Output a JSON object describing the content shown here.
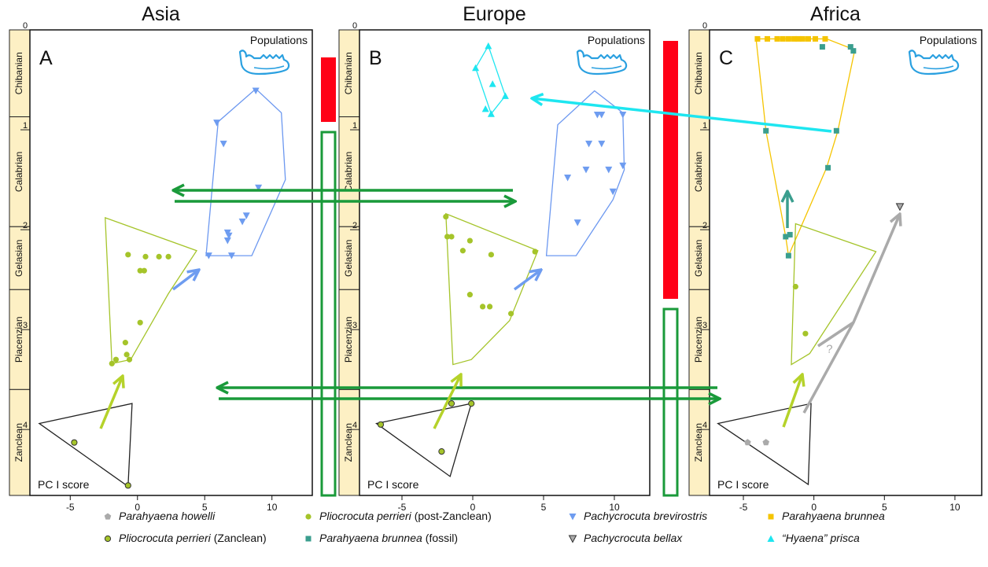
{
  "chart_data": [
    {
      "type": "scatter",
      "title": "Asia",
      "label": "A",
      "populations": "Populations",
      "xlabel": "PC I score",
      "xlim": [
        -8,
        13
      ],
      "xticks": [
        -5,
        0,
        5,
        10
      ],
      "ylim": [
        0,
        4.66
      ],
      "y_reversed": true,
      "yticks": [
        0,
        1,
        2,
        3,
        4
      ],
      "series": [
        {
          "marker": "circle",
          "color": "#a5c42a",
          "x": [
            -0.7,
            0.6,
            1.6,
            2.3,
            0.2,
            0.5,
            0.2,
            -0.9,
            -0.8,
            -0.6,
            -1.6,
            -1.9
          ],
          "y": [
            2.25,
            2.27,
            2.27,
            2.27,
            2.41,
            2.41,
            2.93,
            3.13,
            3.25,
            3.3,
            3.3,
            3.34
          ]
        },
        {
          "marker": "down-triangle",
          "color": "#6e9cf0",
          "x": [
            8.8,
            5.9,
            6.4,
            9.0,
            8.1,
            7.8,
            6.7,
            6.8,
            6.7,
            5.3,
            7.0
          ],
          "y": [
            0.61,
            0.93,
            1.14,
            1.58,
            1.86,
            1.92,
            2.03,
            2.06,
            2.11,
            2.26,
            2.26
          ]
        },
        {
          "marker": "circle-outlined",
          "color": "#a5c42a",
          "x": [
            -4.7,
            -0.7
          ],
          "y": [
            4.13,
            4.56
          ]
        }
      ],
      "hulls": [
        {
          "color": "#a5c42a",
          "x": [
            -2.4,
            4.4,
            2.3,
            -0.5,
            -1.9
          ],
          "y": [
            1.88,
            2.21,
            2.64,
            3.3,
            3.34
          ]
        },
        {
          "color": "#6c98f0",
          "x": [
            8.8,
            10.7,
            11.0,
            8.5,
            5.1,
            6.0
          ],
          "y": [
            0.59,
            0.83,
            1.5,
            2.26,
            2.26,
            0.92
          ]
        },
        {
          "color": "#222222",
          "x": [
            -7.3,
            -0.4,
            -0.7
          ],
          "y": [
            3.94,
            3.74,
            4.57
          ]
        }
      ]
    },
    {
      "type": "scatter",
      "title": "Europe",
      "label": "B",
      "populations": "Populations",
      "xlabel": "PC I score",
      "xlim": [
        -8,
        12.5
      ],
      "xticks": [
        -5,
        0,
        5,
        10
      ],
      "ylim": [
        0,
        4.66
      ],
      "y_reversed": true,
      "yticks": [
        0,
        1,
        2,
        3,
        4
      ],
      "series": [
        {
          "marker": "up-triangle",
          "color": "#1ee6f0",
          "x": [
            1.1,
            0.2,
            1.4,
            2.3,
            1.3,
            0.9
          ],
          "y": [
            0.16,
            0.38,
            0.54,
            0.66,
            0.84,
            0.79
          ]
        },
        {
          "marker": "down-triangle",
          "color": "#6e9cf0",
          "x": [
            10.6,
            8.8,
            9.1,
            8.2,
            9.1,
            10.6,
            8.0,
            9.6,
            9.9,
            6.7,
            7.4
          ],
          "y": [
            0.85,
            0.85,
            0.85,
            1.14,
            1.14,
            1.36,
            1.4,
            1.4,
            1.62,
            1.48,
            1.93
          ]
        },
        {
          "marker": "circle",
          "color": "#a5c42a",
          "x": [
            -1.9,
            -1.8,
            -1.5,
            -0.2,
            -0.7,
            4.4,
            1.3,
            -0.2,
            0.7,
            1.2,
            2.7
          ],
          "y": [
            1.87,
            2.07,
            2.07,
            2.11,
            2.21,
            2.22,
            2.25,
            2.65,
            2.77,
            2.77,
            2.84
          ]
        },
        {
          "marker": "circle-outlined",
          "color": "#a5c42a",
          "x": [
            -6.5,
            -2.2,
            -1.5,
            -0.1
          ],
          "y": [
            3.95,
            4.22,
            3.74,
            3.74
          ]
        }
      ],
      "hulls": [
        {
          "color": "#1ee6f0",
          "x": [
            1.1,
            2.3,
            1.3,
            0.2
          ],
          "y": [
            0.16,
            0.66,
            0.84,
            0.38
          ]
        },
        {
          "color": "#6c98f0",
          "x": [
            8.6,
            10.6,
            10.7,
            9.9,
            7.3,
            5.2,
            6.0
          ],
          "y": [
            0.61,
            0.83,
            1.4,
            1.7,
            2.26,
            2.26,
            0.95
          ]
        },
        {
          "color": "#a5c42a",
          "x": [
            -1.9,
            4.6,
            2.6,
            -0.1,
            -1.4
          ],
          "y": [
            1.84,
            2.21,
            2.91,
            3.3,
            3.35
          ]
        },
        {
          "color": "#222222",
          "x": [
            -6.8,
            -0.1,
            -1.6
          ],
          "y": [
            3.94,
            3.74,
            4.47
          ]
        }
      ]
    },
    {
      "type": "scatter",
      "title": "Africa",
      "label": "C",
      "populations": "Populations",
      "xlabel": "PC I score",
      "xlim": [
        -7.4,
        11.9
      ],
      "xticks": [
        -5,
        0,
        5,
        10
      ],
      "ylim": [
        0,
        4.66
      ],
      "y_reversed": true,
      "yticks": [
        0,
        1,
        2,
        3,
        4
      ],
      "series": [
        {
          "marker": "square",
          "color": "#f5c400",
          "x": [
            -4.0,
            -3.3,
            -2.6,
            -2.2,
            -1.8,
            -1.4,
            -1.1,
            -0.8,
            -0.4,
            0.1,
            0.8
          ],
          "y": [
            0.09,
            0.09,
            0.09,
            0.09,
            0.09,
            0.09,
            0.09,
            0.09,
            0.09,
            0.09,
            0.09
          ]
        },
        {
          "marker": "square",
          "color": "#3a9e8e",
          "x": [
            0.6,
            2.6,
            2.8,
            -3.4,
            1.6,
            1.0,
            -1.7,
            -2.0,
            -1.8
          ],
          "y": [
            0.17,
            0.17,
            0.21,
            1.01,
            1.01,
            1.38,
            2.05,
            2.07,
            2.26
          ]
        },
        {
          "marker": "down-triangle-outlined",
          "color": "#aaaaaa",
          "x": [
            6.1
          ],
          "y": [
            1.77
          ]
        },
        {
          "marker": "pentagon",
          "color": "#aaaaaa",
          "x": [
            -4.7,
            -3.4
          ],
          "y": [
            4.13,
            4.13
          ]
        },
        {
          "marker": "circle",
          "color": "#a5c42a",
          "x": [
            -1.3,
            -0.6
          ],
          "y": [
            2.57,
            3.04
          ]
        }
      ],
      "hulls": [
        {
          "color": "#f5c400",
          "x": [
            -4.1,
            0.9,
            2.9,
            1.7,
            0.9,
            -1.8,
            -2.0,
            -3.4
          ],
          "y": [
            0.09,
            0.09,
            0.2,
            1.01,
            1.38,
            2.26,
            2.07,
            1.01
          ]
        },
        {
          "color": "#a5c42a",
          "x": [
            -1.3,
            4.4,
            -0.3,
            -1.6
          ],
          "y": [
            1.94,
            2.22,
            3.24,
            3.35
          ]
        },
        {
          "color": "#222222",
          "x": [
            -6.8,
            -0.2,
            -0.4
          ],
          "y": [
            3.94,
            3.74,
            4.55
          ]
        }
      ],
      "annotations": [
        {
          "text": "?",
          "x": 1.1,
          "y": 3.2
        }
      ]
    }
  ],
  "timescale": {
    "stages": [
      "Chibanian",
      "Calabrian",
      "Gelasian",
      "Piacenzian",
      "Zanclean"
    ],
    "bounds": [
      0,
      0.87,
      1.97,
      2.6,
      3.6,
      4.66
    ],
    "color": "#fdf0c4"
  },
  "legend": [
    {
      "name": "Parahyaena howelli",
      "marker": "pentagon",
      "color": "#aaaaaa"
    },
    {
      "name": "Pliocrocuta perrieri",
      "qualifier": "(post-Zanclean)",
      "marker": "circle",
      "color": "#a5c42a"
    },
    {
      "name": "Pachycrocuta brevirostris",
      "marker": "down-triangle",
      "color": "#6e9cf0"
    },
    {
      "name": "Parahyaena brunnea",
      "marker": "square",
      "color": "#f5c400"
    },
    {
      "name": "Pliocrocuta perrieri",
      "qualifier": "(Zanclean)",
      "marker": "circle-outlined",
      "color": "#a5c42a"
    },
    {
      "name": "Parahyaena brunnea",
      "qualifier": "(fossil)",
      "marker": "square",
      "color": "#3a9e8e"
    },
    {
      "name": "Pachycrocuta bellax",
      "marker": "down-triangle-outlined",
      "color": "#aaaaaa"
    },
    {
      "name": "“Hyaena” prisca",
      "marker": "up-triangle",
      "color": "#1ee6f0"
    }
  ]
}
